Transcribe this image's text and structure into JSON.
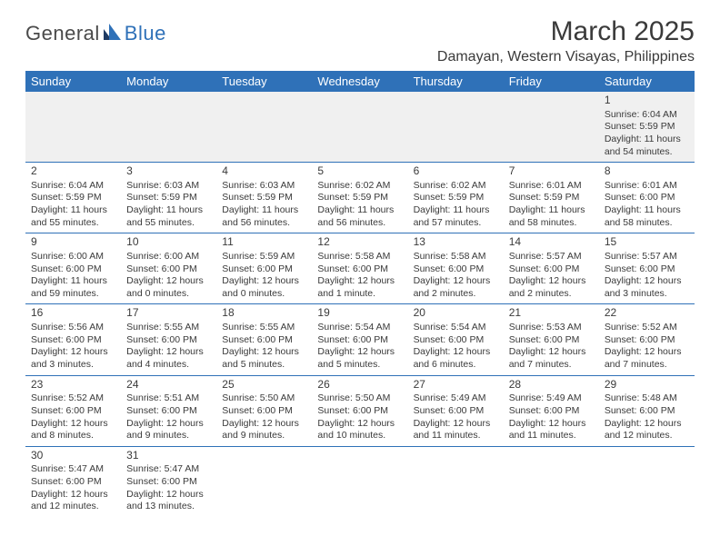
{
  "logo": {
    "part1": "General",
    "part2": "Blue"
  },
  "title": "March 2025",
  "location": "Damayan, Western Visayas, Philippines",
  "colors": {
    "header_bg": "#2f71b8",
    "header_fg": "#ffffff",
    "border": "#2f71b8",
    "text": "#3a3a3a",
    "empty_bg": "#f0f0f0",
    "logo_gray": "#4a4a4a",
    "logo_blue": "#2f71b8"
  },
  "day_headers": [
    "Sunday",
    "Monday",
    "Tuesday",
    "Wednesday",
    "Thursday",
    "Friday",
    "Saturday"
  ],
  "weeks": [
    [
      null,
      null,
      null,
      null,
      null,
      null,
      {
        "n": "1",
        "sr": "Sunrise: 6:04 AM",
        "ss": "Sunset: 5:59 PM",
        "dl": "Daylight: 11 hours and 54 minutes."
      }
    ],
    [
      {
        "n": "2",
        "sr": "Sunrise: 6:04 AM",
        "ss": "Sunset: 5:59 PM",
        "dl": "Daylight: 11 hours and 55 minutes."
      },
      {
        "n": "3",
        "sr": "Sunrise: 6:03 AM",
        "ss": "Sunset: 5:59 PM",
        "dl": "Daylight: 11 hours and 55 minutes."
      },
      {
        "n": "4",
        "sr": "Sunrise: 6:03 AM",
        "ss": "Sunset: 5:59 PM",
        "dl": "Daylight: 11 hours and 56 minutes."
      },
      {
        "n": "5",
        "sr": "Sunrise: 6:02 AM",
        "ss": "Sunset: 5:59 PM",
        "dl": "Daylight: 11 hours and 56 minutes."
      },
      {
        "n": "6",
        "sr": "Sunrise: 6:02 AM",
        "ss": "Sunset: 5:59 PM",
        "dl": "Daylight: 11 hours and 57 minutes."
      },
      {
        "n": "7",
        "sr": "Sunrise: 6:01 AM",
        "ss": "Sunset: 5:59 PM",
        "dl": "Daylight: 11 hours and 58 minutes."
      },
      {
        "n": "8",
        "sr": "Sunrise: 6:01 AM",
        "ss": "Sunset: 6:00 PM",
        "dl": "Daylight: 11 hours and 58 minutes."
      }
    ],
    [
      {
        "n": "9",
        "sr": "Sunrise: 6:00 AM",
        "ss": "Sunset: 6:00 PM",
        "dl": "Daylight: 11 hours and 59 minutes."
      },
      {
        "n": "10",
        "sr": "Sunrise: 6:00 AM",
        "ss": "Sunset: 6:00 PM",
        "dl": "Daylight: 12 hours and 0 minutes."
      },
      {
        "n": "11",
        "sr": "Sunrise: 5:59 AM",
        "ss": "Sunset: 6:00 PM",
        "dl": "Daylight: 12 hours and 0 minutes."
      },
      {
        "n": "12",
        "sr": "Sunrise: 5:58 AM",
        "ss": "Sunset: 6:00 PM",
        "dl": "Daylight: 12 hours and 1 minute."
      },
      {
        "n": "13",
        "sr": "Sunrise: 5:58 AM",
        "ss": "Sunset: 6:00 PM",
        "dl": "Daylight: 12 hours and 2 minutes."
      },
      {
        "n": "14",
        "sr": "Sunrise: 5:57 AM",
        "ss": "Sunset: 6:00 PM",
        "dl": "Daylight: 12 hours and 2 minutes."
      },
      {
        "n": "15",
        "sr": "Sunrise: 5:57 AM",
        "ss": "Sunset: 6:00 PM",
        "dl": "Daylight: 12 hours and 3 minutes."
      }
    ],
    [
      {
        "n": "16",
        "sr": "Sunrise: 5:56 AM",
        "ss": "Sunset: 6:00 PM",
        "dl": "Daylight: 12 hours and 3 minutes."
      },
      {
        "n": "17",
        "sr": "Sunrise: 5:55 AM",
        "ss": "Sunset: 6:00 PM",
        "dl": "Daylight: 12 hours and 4 minutes."
      },
      {
        "n": "18",
        "sr": "Sunrise: 5:55 AM",
        "ss": "Sunset: 6:00 PM",
        "dl": "Daylight: 12 hours and 5 minutes."
      },
      {
        "n": "19",
        "sr": "Sunrise: 5:54 AM",
        "ss": "Sunset: 6:00 PM",
        "dl": "Daylight: 12 hours and 5 minutes."
      },
      {
        "n": "20",
        "sr": "Sunrise: 5:54 AM",
        "ss": "Sunset: 6:00 PM",
        "dl": "Daylight: 12 hours and 6 minutes."
      },
      {
        "n": "21",
        "sr": "Sunrise: 5:53 AM",
        "ss": "Sunset: 6:00 PM",
        "dl": "Daylight: 12 hours and 7 minutes."
      },
      {
        "n": "22",
        "sr": "Sunrise: 5:52 AM",
        "ss": "Sunset: 6:00 PM",
        "dl": "Daylight: 12 hours and 7 minutes."
      }
    ],
    [
      {
        "n": "23",
        "sr": "Sunrise: 5:52 AM",
        "ss": "Sunset: 6:00 PM",
        "dl": "Daylight: 12 hours and 8 minutes."
      },
      {
        "n": "24",
        "sr": "Sunrise: 5:51 AM",
        "ss": "Sunset: 6:00 PM",
        "dl": "Daylight: 12 hours and 9 minutes."
      },
      {
        "n": "25",
        "sr": "Sunrise: 5:50 AM",
        "ss": "Sunset: 6:00 PM",
        "dl": "Daylight: 12 hours and 9 minutes."
      },
      {
        "n": "26",
        "sr": "Sunrise: 5:50 AM",
        "ss": "Sunset: 6:00 PM",
        "dl": "Daylight: 12 hours and 10 minutes."
      },
      {
        "n": "27",
        "sr": "Sunrise: 5:49 AM",
        "ss": "Sunset: 6:00 PM",
        "dl": "Daylight: 12 hours and 11 minutes."
      },
      {
        "n": "28",
        "sr": "Sunrise: 5:49 AM",
        "ss": "Sunset: 6:00 PM",
        "dl": "Daylight: 12 hours and 11 minutes."
      },
      {
        "n": "29",
        "sr": "Sunrise: 5:48 AM",
        "ss": "Sunset: 6:00 PM",
        "dl": "Daylight: 12 hours and 12 minutes."
      }
    ],
    [
      {
        "n": "30",
        "sr": "Sunrise: 5:47 AM",
        "ss": "Sunset: 6:00 PM",
        "dl": "Daylight: 12 hours and 12 minutes."
      },
      {
        "n": "31",
        "sr": "Sunrise: 5:47 AM",
        "ss": "Sunset: 6:00 PM",
        "dl": "Daylight: 12 hours and 13 minutes."
      },
      null,
      null,
      null,
      null,
      null
    ]
  ]
}
